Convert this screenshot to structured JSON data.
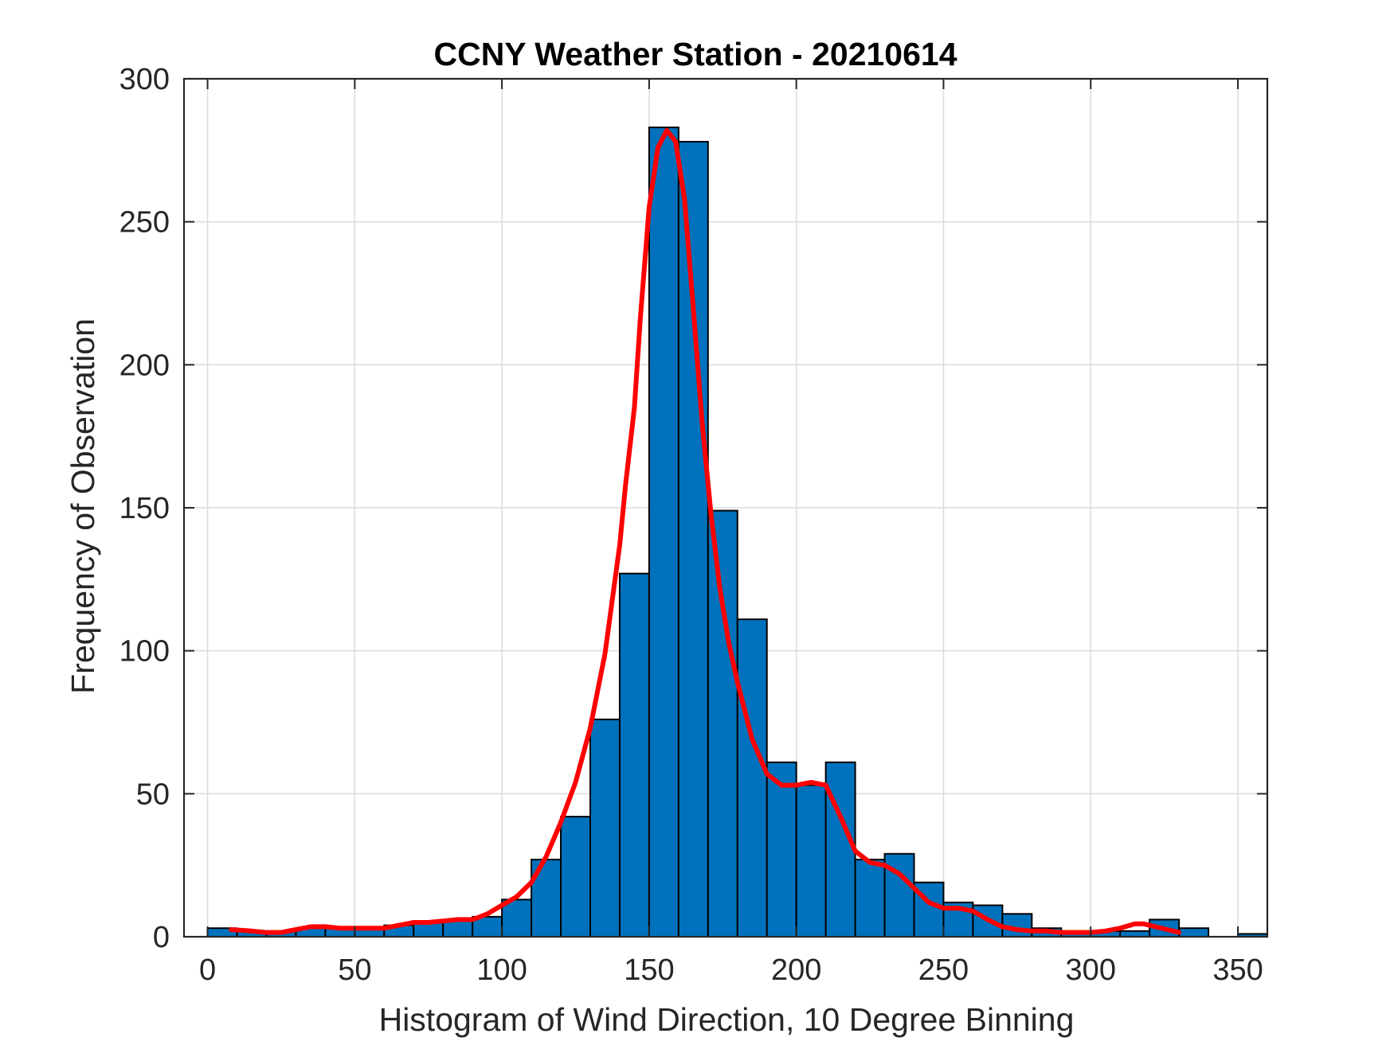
{
  "chart_data": {
    "type": "bar",
    "title": "CCNY Weather Station - 20210614",
    "xlabel": "Histogram of Wind Direction, 10 Degree Binning",
    "ylabel": "Frequency of Observation",
    "xlim": [
      -8,
      360
    ],
    "ylim": [
      0,
      300
    ],
    "xticks": [
      0,
      50,
      100,
      150,
      200,
      250,
      300,
      350
    ],
    "yticks": [
      0,
      50,
      100,
      150,
      200,
      250,
      300
    ],
    "grid": true,
    "bin_width": 10,
    "bin_edges": [
      0,
      10,
      20,
      30,
      40,
      50,
      60,
      70,
      80,
      90,
      100,
      110,
      120,
      130,
      140,
      150,
      160,
      170,
      180,
      190,
      200,
      210,
      220,
      230,
      240,
      250,
      260,
      270,
      280,
      290,
      300,
      310,
      320,
      330,
      340,
      350,
      360
    ],
    "values": [
      3,
      2,
      2,
      3,
      3,
      3,
      4,
      5,
      6,
      7,
      13,
      27,
      42,
      76,
      127,
      283,
      278,
      149,
      111,
      61,
      53,
      61,
      27,
      29,
      19,
      12,
      11,
      8,
      3,
      2,
      2,
      2,
      6,
      3,
      0,
      1
    ],
    "series": [
      {
        "name": "histogram",
        "color": "#0072BD",
        "edge_color": "#000000"
      },
      {
        "name": "density curve",
        "color": "#FF0000",
        "x": [
          8,
          15,
          20,
          25,
          30,
          35,
          40,
          45,
          50,
          55,
          60,
          65,
          70,
          75,
          80,
          85,
          90,
          95,
          100,
          105,
          110,
          115,
          120,
          125,
          130,
          135,
          140,
          142,
          145,
          147,
          150,
          153,
          156,
          159,
          162,
          165,
          168,
          171,
          174,
          177,
          180,
          185,
          190,
          195,
          200,
          205,
          210,
          215,
          220,
          225,
          230,
          235,
          240,
          245,
          250,
          255,
          260,
          265,
          270,
          275,
          280,
          285,
          290,
          295,
          300,
          305,
          310,
          315,
          318,
          322,
          326,
          330
        ],
        "y": [
          2.5,
          2,
          1.5,
          1.5,
          2.5,
          3.5,
          3.5,
          3,
          3,
          3,
          3,
          4,
          5,
          5,
          5.5,
          6,
          6,
          8,
          11,
          14,
          19,
          28,
          40,
          54,
          73,
          99,
          137,
          158,
          185,
          216,
          255,
          276,
          282,
          278,
          258,
          220,
          180,
          148,
          122,
          103,
          89,
          69,
          57,
          53,
          53,
          54,
          53,
          42,
          30,
          26,
          25,
          22,
          17,
          12,
          10,
          10,
          9,
          6,
          3.5,
          2.5,
          2,
          2,
          1.5,
          1.5,
          1.5,
          2,
          3,
          4.5,
          4.5,
          3.5,
          2.5,
          1.5
        ]
      }
    ]
  }
}
